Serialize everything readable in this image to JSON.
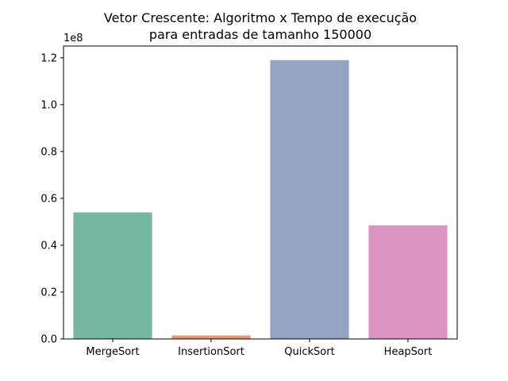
{
  "chart_data": {
    "type": "bar",
    "title_lines": [
      "Vetor Crescente: Algoritmo x Tempo de execução",
      "para entradas de tamanho 150000"
    ],
    "xlabel": "",
    "ylabel": "",
    "y_scale_label": "1e8",
    "y_ticks": [
      {
        "value": 0.0,
        "label": "0.0"
      },
      {
        "value": 0.2,
        "label": "0.2"
      },
      {
        "value": 0.4,
        "label": "0.4"
      },
      {
        "value": 0.6,
        "label": "0.6"
      },
      {
        "value": 0.8,
        "label": "0.8"
      },
      {
        "value": 1.0,
        "label": "1.0"
      },
      {
        "value": 1.2,
        "label": "1.2"
      }
    ],
    "ylim": [
      0,
      1.25
    ],
    "categories": [
      "MergeSort",
      "InsertionSort",
      "QuickSort",
      "HeapSort"
    ],
    "values": [
      0.54,
      0.015,
      1.19,
      0.485
    ],
    "colors": [
      "#75b7a0",
      "#e99872",
      "#94a5c4",
      "#dc95c1"
    ],
    "grid": false,
    "legend": false
  }
}
